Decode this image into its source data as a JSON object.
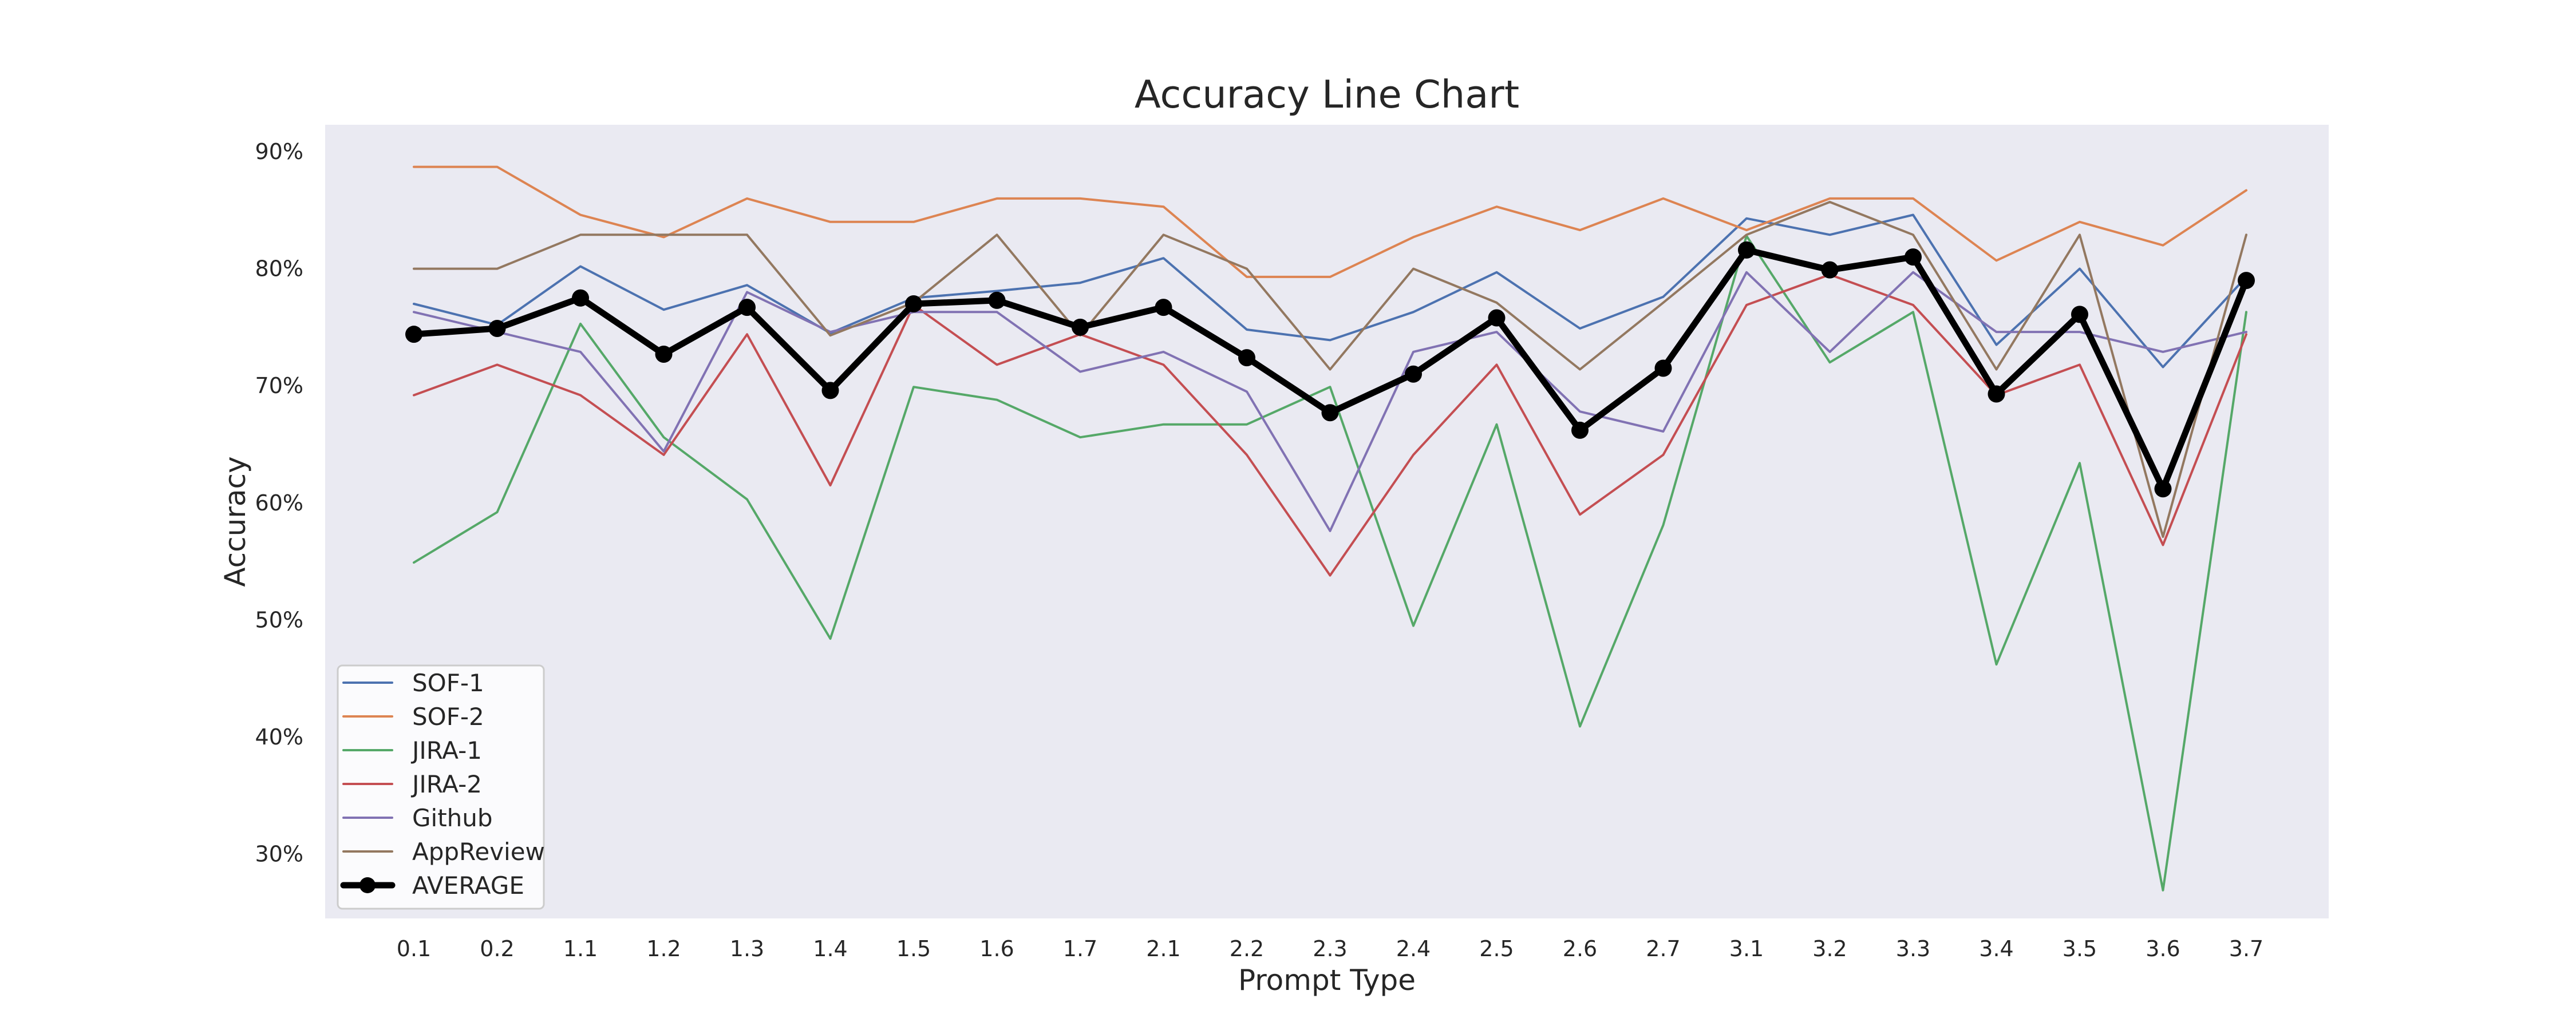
{
  "chart_data": {
    "type": "line",
    "title": "Accuracy Line Chart",
    "xlabel": "Prompt Type",
    "ylabel": "Accuracy",
    "categories": [
      "0.1",
      "0.2",
      "1.1",
      "1.2",
      "1.3",
      "1.4",
      "1.5",
      "1.6",
      "1.7",
      "2.1",
      "2.2",
      "2.3",
      "2.4",
      "2.5",
      "2.6",
      "2.7",
      "3.1",
      "3.2",
      "3.3",
      "3.4",
      "3.5",
      "3.6",
      "3.7"
    ],
    "yticks": [
      0.3,
      0.4,
      0.5,
      0.6,
      0.7,
      0.8,
      0.9
    ],
    "ytick_labels": [
      "30%",
      "40%",
      "50%",
      "60%",
      "70%",
      "80%",
      "90%"
    ],
    "ylim": [
      0.245,
      0.923
    ],
    "grid": false,
    "legend_position": "lower-left",
    "background_color": "#eaeaf2",
    "series": [
      {
        "name": "SOF-1",
        "color": "#4c72b0",
        "values": [
          0.77,
          0.752,
          0.802,
          0.765,
          0.786,
          0.745,
          0.775,
          0.781,
          0.788,
          0.809,
          0.748,
          0.739,
          0.763,
          0.797,
          0.749,
          0.776,
          0.843,
          0.829,
          0.846,
          0.735,
          0.8,
          0.716,
          0.793
        ]
      },
      {
        "name": "SOF-2",
        "color": "#dd8452",
        "values": [
          0.887,
          0.887,
          0.846,
          0.827,
          0.86,
          0.84,
          0.84,
          0.86,
          0.86,
          0.853,
          0.793,
          0.793,
          0.827,
          0.853,
          0.833,
          0.86,
          0.833,
          0.86,
          0.86,
          0.807,
          0.84,
          0.82,
          0.867
        ]
      },
      {
        "name": "JIRA-1",
        "color": "#55a868",
        "values": [
          0.549,
          0.592,
          0.753,
          0.656,
          0.603,
          0.484,
          0.699,
          0.688,
          0.656,
          0.667,
          0.667,
          0.699,
          0.495,
          0.667,
          0.409,
          0.581,
          0.828,
          0.72,
          0.763,
          0.462,
          0.634,
          0.269,
          0.763
        ]
      },
      {
        "name": "JIRA-2",
        "color": "#c44e52",
        "values": [
          0.692,
          0.718,
          0.692,
          0.641,
          0.744,
          0.615,
          0.769,
          0.718,
          0.744,
          0.718,
          0.641,
          0.538,
          0.641,
          0.718,
          0.59,
          0.641,
          0.769,
          0.795,
          0.769,
          0.692,
          0.718,
          0.564,
          0.744
        ]
      },
      {
        "name": "Github",
        "color": "#8172b3",
        "values": [
          0.763,
          0.746,
          0.729,
          0.644,
          0.78,
          0.746,
          0.763,
          0.763,
          0.712,
          0.729,
          0.695,
          0.576,
          0.729,
          0.746,
          0.678,
          0.661,
          0.797,
          0.729,
          0.797,
          0.746,
          0.746,
          0.729,
          0.746
        ]
      },
      {
        "name": "AppReview",
        "color": "#937860",
        "values": [
          0.8,
          0.8,
          0.829,
          0.829,
          0.829,
          0.743,
          0.771,
          0.829,
          0.743,
          0.829,
          0.8,
          0.714,
          0.8,
          0.771,
          0.714,
          0.771,
          0.829,
          0.857,
          0.829,
          0.714,
          0.829,
          0.571,
          0.829
        ]
      },
      {
        "name": "AVERAGE",
        "color": "#000000",
        "markers": true,
        "values": [
          0.744,
          0.749,
          0.775,
          0.727,
          0.767,
          0.696,
          0.77,
          0.773,
          0.75,
          0.767,
          0.724,
          0.677,
          0.71,
          0.758,
          0.662,
          0.715,
          0.816,
          0.799,
          0.81,
          0.693,
          0.761,
          0.612,
          0.79
        ]
      }
    ]
  }
}
